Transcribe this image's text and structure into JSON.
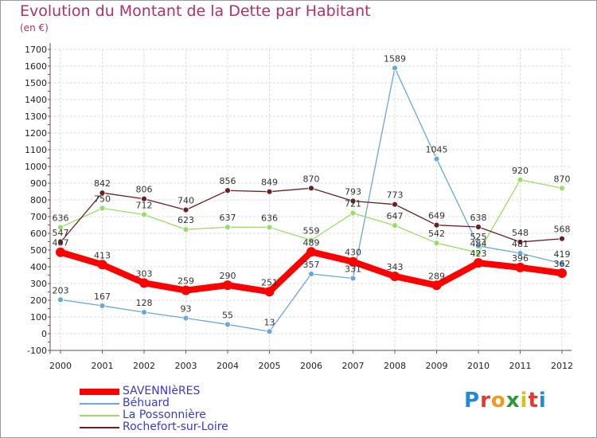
{
  "title": "Evolution du Montant de la Dette par Habitant",
  "subtitle": "(en €)",
  "logo_text": "Proxiti",
  "chart_data": {
    "type": "line",
    "title": "Evolution du Montant de la Dette par Habitant",
    "ylabel": "(en €)",
    "x": [
      "2000",
      "2001",
      "2002",
      "2003",
      "2004",
      "2005",
      "2006",
      "2007",
      "2008",
      "2009",
      "2010",
      "2011",
      "2012"
    ],
    "yticks": [
      -100,
      0,
      100,
      200,
      300,
      400,
      500,
      600,
      700,
      800,
      900,
      1000,
      1100,
      1200,
      1300,
      1400,
      1500,
      1600,
      1700
    ],
    "ylim": [
      -100,
      1700
    ],
    "grid": true,
    "legend": "bottom-left",
    "series": [
      {
        "name": "SAVENNIèRES",
        "color": "#ff0000",
        "width": 8,
        "radius": 6,
        "values": [
          487,
          413,
          303,
          259,
          290,
          251,
          489,
          430,
          343,
          289,
          423,
          396,
          362
        ],
        "labels": [
          "487",
          "413",
          "303",
          "259",
          "290",
          "251",
          "489",
          "430",
          "343",
          "289",
          "423",
          "396",
          "362"
        ]
      },
      {
        "name": "Béhuard",
        "color": "#6aa8d8",
        "width": 1.3,
        "radius": 3.5,
        "values": [
          203,
          167,
          128,
          93,
          55,
          13,
          357,
          331,
          1589,
          1045,
          525,
          481,
          419
        ],
        "labels": [
          "203",
          "167",
          "128",
          "93",
          "55",
          "13",
          "357",
          "331",
          "1589",
          "1045",
          "525",
          "481",
          "419"
        ]
      },
      {
        "name": "La Possonnière",
        "color": "#99dd66",
        "width": 1.3,
        "radius": 3.5,
        "values": [
          636,
          750,
          712,
          623,
          637,
          636,
          559,
          721,
          647,
          542,
          484,
          920,
          870
        ],
        "labels": [
          "636",
          "750",
          "712",
          "623",
          "637",
          "636",
          "559",
          "721",
          "647",
          "542",
          "484",
          "920",
          "870"
        ]
      },
      {
        "name": "Rochefort-sur-Loire",
        "color": "#6b1f1f",
        "width": 1.3,
        "radius": 3.5,
        "values": [
          547,
          842,
          806,
          740,
          856,
          849,
          870,
          793,
          773,
          649,
          638,
          548,
          568
        ],
        "labels": [
          "547",
          "842",
          "806",
          "740",
          "856",
          "849",
          "870",
          "793",
          "773",
          "649",
          "638",
          "548",
          "568"
        ]
      }
    ]
  }
}
